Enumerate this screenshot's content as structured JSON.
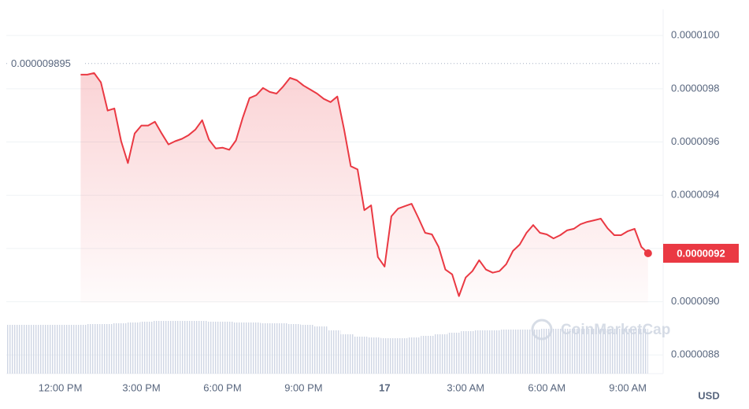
{
  "chart_data": {
    "type": "line",
    "x": [
      12.75,
      13,
      13.25,
      13.5,
      13.75,
      14,
      14.25,
      14.5,
      14.75,
      15,
      15.25,
      15.5,
      15.75,
      16,
      16.25,
      16.5,
      16.75,
      17,
      17.25,
      17.5,
      17.75,
      18,
      18.25,
      18.5,
      18.75,
      19,
      19.25,
      19.5,
      19.75,
      20,
      20.25,
      20.5,
      20.75,
      21,
      21.25,
      21.5,
      21.75,
      22,
      22.25,
      22.5,
      22.75,
      23,
      23.25,
      23.5,
      23.75,
      24,
      24.25,
      24.5,
      24.75,
      25,
      25.25,
      25.5,
      25.75,
      26,
      26.25,
      26.5,
      26.75,
      27,
      27.25,
      27.5,
      27.75,
      28,
      28.25,
      28.5,
      28.75,
      29,
      29.25,
      29.5,
      29.75,
      30,
      30.25,
      30.5,
      30.75,
      31,
      31.25,
      31.5,
      31.75,
      32,
      32.25,
      32.5,
      32.75,
      33,
      33.25,
      33.5,
      33.75
    ],
    "values": [
      9.853e-06,
      9.853e-06,
      9.859e-06,
      9.824e-06,
      9.718e-06,
      9.726e-06,
      9.603e-06,
      9.521e-06,
      9.632e-06,
      9.662e-06,
      9.662e-06,
      9.676e-06,
      9.632e-06,
      9.591e-06,
      9.603e-06,
      9.612e-06,
      9.626e-06,
      9.647e-06,
      9.682e-06,
      9.609e-06,
      9.576e-06,
      9.579e-06,
      9.571e-06,
      9.606e-06,
      9.691e-06,
      9.765e-06,
      9.776e-06,
      9.803e-06,
      9.788e-06,
      9.782e-06,
      9.809e-06,
      9.841e-06,
      9.832e-06,
      9.812e-06,
      9.797e-06,
      9.782e-06,
      9.762e-06,
      9.75e-06,
      9.771e-06,
      9.647e-06,
      9.509e-06,
      9.497e-06,
      9.344e-06,
      9.362e-06,
      9.168e-06,
      9.132e-06,
      9.321e-06,
      9.35e-06,
      9.359e-06,
      9.368e-06,
      9.315e-06,
      9.259e-06,
      9.253e-06,
      9.206e-06,
      9.121e-06,
      9.103e-06,
      9.021e-06,
      9.091e-06,
      9.115e-06,
      9.156e-06,
      9.121e-06,
      9.109e-06,
      9.115e-06,
      9.141e-06,
      9.191e-06,
      9.215e-06,
      9.259e-06,
      9.288e-06,
      9.259e-06,
      9.253e-06,
      9.238e-06,
      9.25e-06,
      9.268e-06,
      9.274e-06,
      9.291e-06,
      9.3e-06,
      9.306e-06,
      9.312e-06,
      9.276e-06,
      9.25e-06,
      9.25e-06,
      9.265e-06,
      9.274e-06,
      9.206e-06,
      9.182e-06
    ],
    "color": "#ea3943",
    "volume": {
      "color": "#cfd6e4",
      "values": [
        62,
        62,
        62,
        62,
        62,
        62,
        63,
        63,
        64,
        65,
        66,
        67,
        67,
        67,
        67,
        66,
        66,
        65,
        65,
        64,
        64,
        63,
        62,
        60,
        55,
        50,
        47,
        46,
        45,
        45,
        46,
        48,
        50,
        52,
        54,
        55,
        55,
        56,
        56,
        56,
        57,
        57,
        57,
        57,
        57,
        57,
        57,
        57
      ]
    },
    "xlim": [
      10,
      34.25
    ],
    "xticks": [
      {
        "value": 12,
        "label": "12:00 PM"
      },
      {
        "value": 15,
        "label": "3:00 PM"
      },
      {
        "value": 18,
        "label": "6:00 PM"
      },
      {
        "value": 21,
        "label": "9:00 PM"
      },
      {
        "value": 24,
        "label": "17"
      },
      {
        "value": 27,
        "label": "3:00 AM"
      },
      {
        "value": 30,
        "label": "6:00 AM"
      },
      {
        "value": 33,
        "label": "9:00 AM"
      }
    ],
    "ylim": [
      8.73e-06,
      1.0098e-05
    ],
    "yticks": [
      {
        "value": 1e-05,
        "label": "0.0000100"
      },
      {
        "value": 9.8e-06,
        "label": "0.0000098"
      },
      {
        "value": 9.6e-06,
        "label": "0.0000096"
      },
      {
        "value": 9.4e-06,
        "label": "0.0000094"
      },
      {
        "value": 9.2e-06,
        "label": "0.0000092"
      },
      {
        "value": 9e-06,
        "label": "0.0000090"
      },
      {
        "value": 8.8e-06,
        "label": "0.0000088"
      }
    ],
    "grid": true,
    "reference": {
      "value": 9.895e-06,
      "label": "0.000009895"
    },
    "last_price": {
      "value": 9.182e-06,
      "label": "0.0000092"
    },
    "currency": "USD",
    "watermark": "CoinMarketCap"
  }
}
